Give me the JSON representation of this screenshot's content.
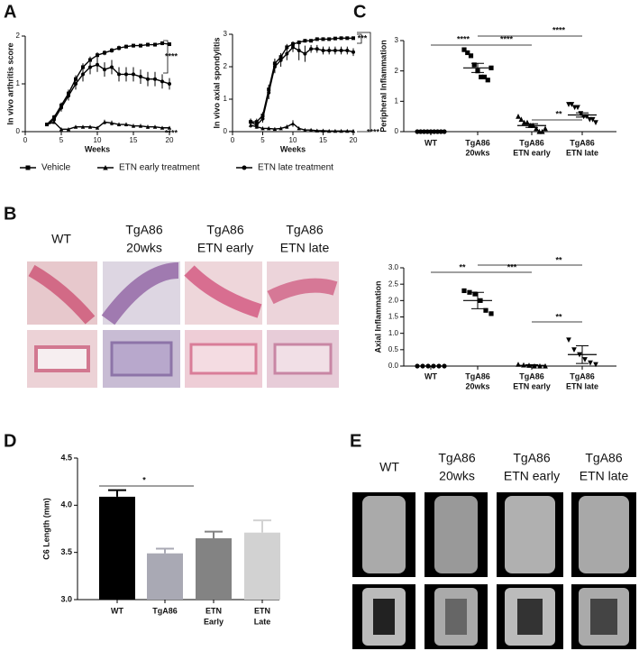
{
  "panels": [
    "A",
    "B",
    "C",
    "D",
    "E"
  ],
  "histology_columns": [
    [
      "WT"
    ],
    [
      "TgA86",
      "20wks"
    ],
    [
      "TgA86",
      "ETN early"
    ],
    [
      "TgA86",
      "ETN late"
    ]
  ],
  "microct_columns": [
    [
      "WT"
    ],
    [
      "TgA86",
      "20wks"
    ],
    [
      "TgA86",
      "ETN early"
    ],
    [
      "TgA86",
      "ETN late"
    ]
  ],
  "chart_data": [
    {
      "type": "line",
      "ylabel": "In vivo arthritis score",
      "xlabel": "Weeks",
      "x": [
        3,
        4,
        5,
        6,
        7,
        8,
        9,
        10,
        11,
        12,
        13,
        14,
        15,
        16,
        17,
        18,
        19,
        20
      ],
      "xlim": [
        0,
        20
      ],
      "xticks": [
        0,
        5,
        10,
        15,
        20
      ],
      "ylim": [
        0,
        2
      ],
      "yticks": [
        0,
        1,
        2
      ],
      "series": [
        {
          "name": "Vehicle",
          "marker": "square",
          "color": "#000000",
          "values": [
            0.15,
            0.3,
            0.55,
            0.8,
            1.1,
            1.35,
            1.5,
            1.6,
            1.65,
            1.7,
            1.75,
            1.78,
            1.8,
            1.8,
            1.82,
            1.82,
            1.85,
            1.83
          ],
          "errors": [
            0.03,
            0.05,
            0.06,
            0.08,
            0.08,
            0.08,
            0.07,
            0.06,
            0.05,
            0.05,
            0.05,
            0.04,
            0.04,
            0.04,
            0.04,
            0.04,
            0.04,
            0.04
          ]
        },
        {
          "name": "ETN early treatment",
          "marker": "triangle",
          "color": "#000000",
          "values": [
            0.15,
            0.2,
            0.05,
            0.05,
            0.1,
            0.1,
            0.1,
            0.08,
            0.2,
            0.18,
            0.15,
            0.15,
            0.12,
            0.12,
            0.1,
            0.1,
            0.08,
            0.08
          ],
          "errors": [
            0.03,
            0.04,
            0.03,
            0.03,
            0.03,
            0.03,
            0.03,
            0.03,
            0.05,
            0.05,
            0.04,
            0.04,
            0.04,
            0.04,
            0.04,
            0.03,
            0.03,
            0.03
          ]
        },
        {
          "name": "ETN late treatment",
          "marker": "circle",
          "color": "#000000",
          "values": [
            0.15,
            0.25,
            0.5,
            0.75,
            1.0,
            1.2,
            1.35,
            1.4,
            1.3,
            1.35,
            1.2,
            1.2,
            1.2,
            1.15,
            1.1,
            1.1,
            1.05,
            1.0
          ],
          "errors": [
            0.03,
            0.05,
            0.08,
            0.1,
            0.12,
            0.15,
            0.15,
            0.15,
            0.15,
            0.15,
            0.15,
            0.15,
            0.15,
            0.15,
            0.15,
            0.15,
            0.15,
            0.12
          ]
        }
      ],
      "annotations": [
        "****",
        "****"
      ]
    },
    {
      "type": "line",
      "ylabel": "In vivo axial spondylitis",
      "xlabel": "Weeks",
      "x": [
        3,
        4,
        5,
        6,
        7,
        8,
        9,
        10,
        11,
        12,
        13,
        14,
        15,
        16,
        17,
        18,
        19,
        20
      ],
      "xlim": [
        0,
        20
      ],
      "xticks": [
        0,
        5,
        10,
        15,
        20
      ],
      "ylim": [
        0,
        3
      ],
      "yticks": [
        0,
        1,
        2,
        3
      ],
      "series": [
        {
          "marker": "square",
          "color": "#000000",
          "values": [
            0.3,
            0.3,
            0.5,
            1.3,
            2.1,
            2.3,
            2.6,
            2.7,
            2.75,
            2.8,
            2.8,
            2.85,
            2.85,
            2.85,
            2.87,
            2.88,
            2.88,
            2.88
          ],
          "errors": [
            0.1,
            0.1,
            0.1,
            0.15,
            0.15,
            0.12,
            0.1,
            0.08,
            0.06,
            0.05,
            0.05,
            0.05,
            0.04,
            0.04,
            0.04,
            0.04,
            0.04,
            0.04
          ]
        },
        {
          "marker": "triangle",
          "color": "#000000",
          "values": [
            0.2,
            0.15,
            0.1,
            0.1,
            0.08,
            0.1,
            0.15,
            0.25,
            0.1,
            0.05,
            0.05,
            0.03,
            0.03,
            0.02,
            0.02,
            0.02,
            0.02,
            0.02
          ],
          "errors": [
            0.08,
            0.06,
            0.05,
            0.05,
            0.04,
            0.05,
            0.06,
            0.1,
            0.05,
            0.03,
            0.03,
            0.02,
            0.02,
            0.02,
            0.02,
            0.02,
            0.02,
            0.02
          ]
        },
        {
          "marker": "circle",
          "color": "#000000",
          "values": [
            0.3,
            0.2,
            0.4,
            1.2,
            2.0,
            2.2,
            2.4,
            2.6,
            2.5,
            2.4,
            2.55,
            2.55,
            2.5,
            2.5,
            2.5,
            2.5,
            2.5,
            2.45
          ],
          "errors": [
            0.1,
            0.1,
            0.12,
            0.2,
            0.2,
            0.2,
            0.2,
            0.15,
            0.3,
            0.25,
            0.12,
            0.12,
            0.12,
            0.12,
            0.12,
            0.12,
            0.12,
            0.12
          ]
        }
      ],
      "annotations": [
        "***",
        "****"
      ]
    },
    {
      "type": "dot",
      "ylabel": "Peripheral Inflammation",
      "categories": [
        [
          "WT"
        ],
        [
          "TgA86",
          "20wks"
        ],
        [
          "TgA86",
          "ETN early"
        ],
        [
          "TgA86",
          "ETN late"
        ]
      ],
      "markers": [
        "circle",
        "square",
        "triangle",
        "triangle-down"
      ],
      "color": "#000000",
      "ylim": [
        0,
        3
      ],
      "yticks": [
        0,
        1,
        2,
        3
      ],
      "points": [
        [
          0,
          0,
          0,
          0,
          0,
          0,
          0,
          0,
          0
        ],
        [
          2.7,
          2.6,
          2.5,
          2.2,
          2.0,
          1.8,
          1.8,
          1.7,
          2.1
        ],
        [
          0.5,
          0.4,
          0.3,
          0.3,
          0.2,
          0.2,
          0.1,
          0.0,
          0.0,
          0.1
        ],
        [
          0.9,
          0.9,
          0.8,
          0.8,
          0.6,
          0.5,
          0.5,
          0.4,
          0.4,
          0.3
        ]
      ],
      "means": [
        0,
        2.1,
        0.2,
        0.55
      ],
      "errors": [
        0,
        0.15,
        0.06,
        0.07
      ],
      "annotations": [
        "****",
        "****",
        "****",
        "**"
      ]
    },
    {
      "type": "dot",
      "ylabel": "Axial Inflammation",
      "categories": [
        [
          "WT"
        ],
        [
          "TgA86",
          "20wks"
        ],
        [
          "TgA86",
          "ETN early"
        ],
        [
          "TgA86",
          "ETN late"
        ]
      ],
      "markers": [
        "circle",
        "square",
        "triangle",
        "triangle-down"
      ],
      "color": "#000000",
      "ylim": [
        0,
        3
      ],
      "yticks": [
        {
          "value": 0,
          "label": "0.0"
        },
        {
          "value": 0.5,
          "label": "0.5"
        },
        {
          "value": 1,
          "label": "1.0"
        },
        {
          "value": 1.5,
          "label": "1.5"
        },
        {
          "value": 2,
          "label": "2.0"
        },
        {
          "value": 2.5,
          "label": "2.5"
        },
        {
          "value": 3,
          "label": "3.0"
        }
      ],
      "points": [
        [
          0,
          0,
          0,
          0,
          0,
          0
        ],
        [
          2.3,
          2.25,
          2.2,
          2.0,
          1.7,
          1.6
        ],
        [
          0.05,
          0.03,
          0.02,
          0,
          0,
          0
        ],
        [
          0.8,
          0.5,
          0.35,
          0.2,
          0.1,
          0.05
        ]
      ],
      "means": [
        0,
        2.0,
        0.02,
        0.35
      ],
      "errors": [
        0,
        0.25,
        0.02,
        0.27
      ],
      "annotations": [
        "**",
        "***",
        "**",
        "**"
      ]
    },
    {
      "type": "bar",
      "ylabel": "C6 Length (mm)",
      "categories": [
        [
          "WT"
        ],
        [
          "TgA86"
        ],
        [
          "ETN",
          "Early"
        ],
        [
          "ETN",
          "Late"
        ]
      ],
      "values": [
        4.09,
        3.49,
        3.65,
        3.71
      ],
      "errors": [
        0.07,
        0.05,
        0.07,
        0.13
      ],
      "colors": [
        "#000000",
        "#a9a9b4",
        "#838383",
        "#d2d2d2"
      ],
      "ylim": [
        3.0,
        4.5
      ],
      "yticks": [
        {
          "value": 3,
          "label": "3.0"
        },
        {
          "value": 3.5,
          "label": "3.5"
        },
        {
          "value": 4,
          "label": "4.0"
        },
        {
          "value": 4.5,
          "label": "4.5"
        }
      ],
      "annotations": [
        "*"
      ]
    }
  ]
}
